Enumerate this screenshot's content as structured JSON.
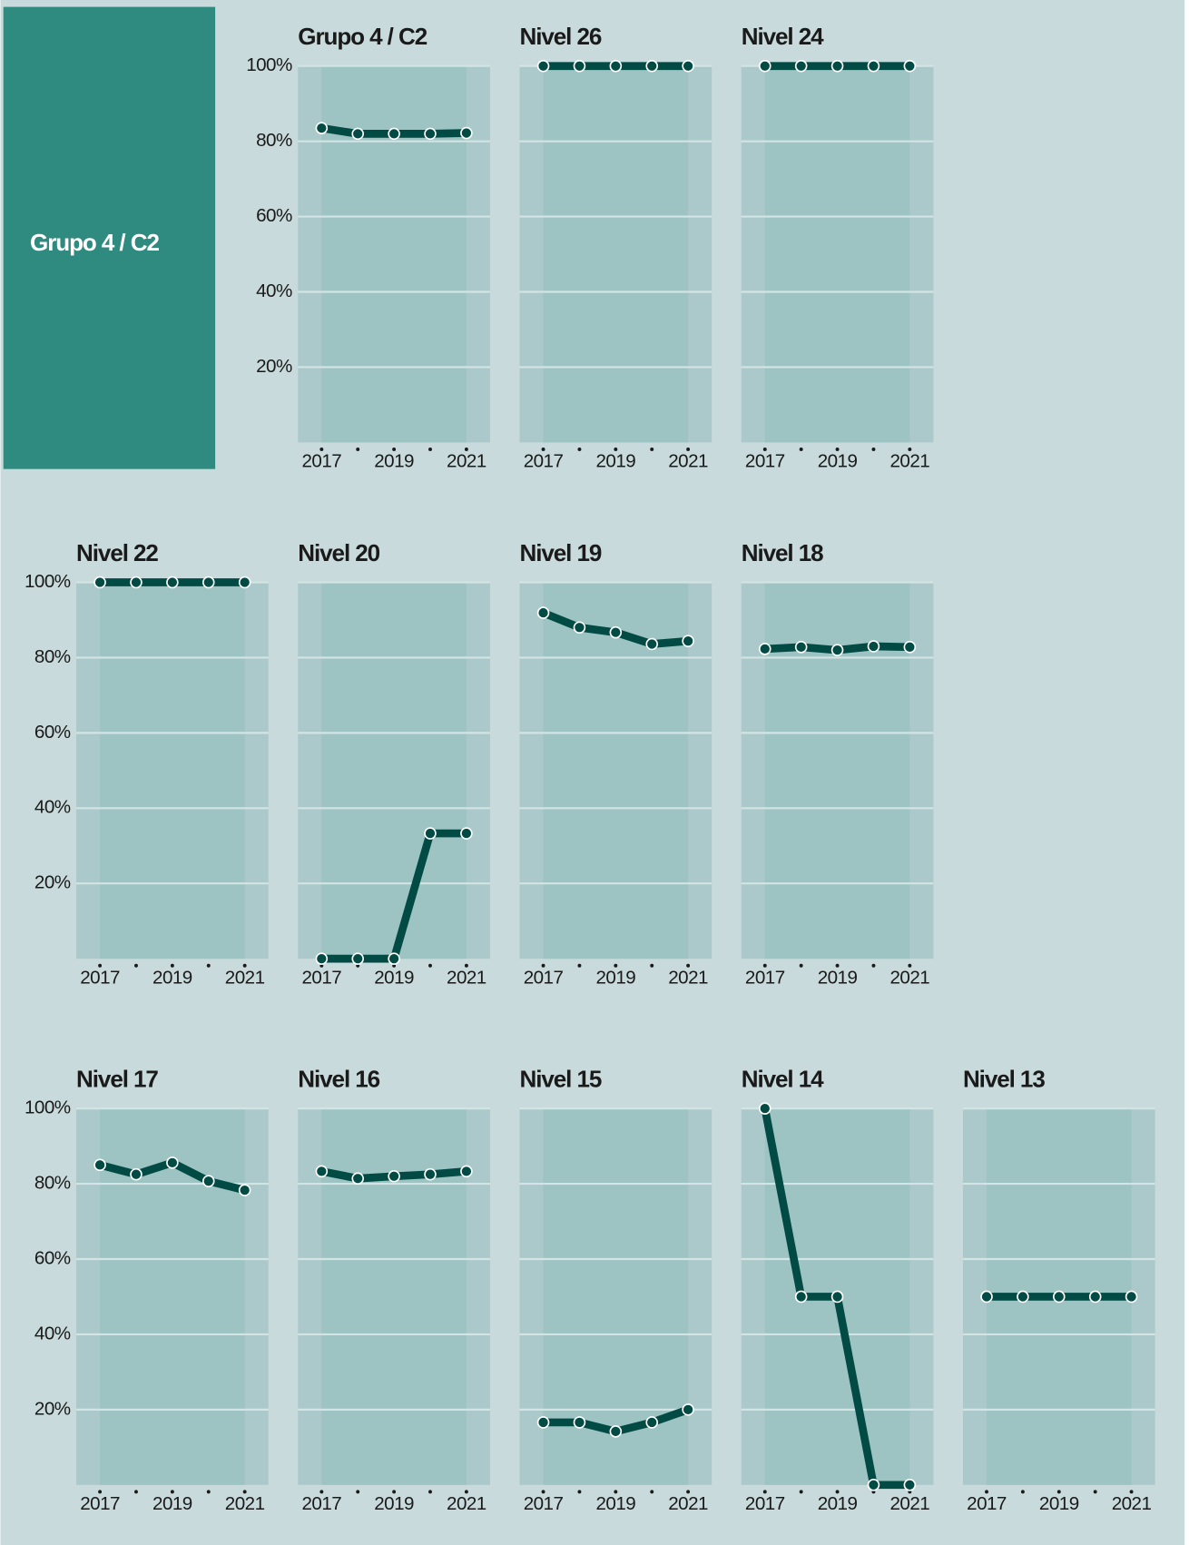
{
  "group_label": "Grupo 4 / C2",
  "shared_axes": {
    "xlim": [
      2017,
      2021
    ],
    "xticks": [
      2017,
      {
        "value": 2018,
        "label": null
      },
      2019,
      {
        "value": 2020,
        "label": null
      },
      2021
    ],
    "ylim": [
      0,
      100
    ],
    "yticks": [
      {
        "value": 20,
        "label": "20%"
      },
      {
        "value": 40,
        "label": "40%"
      },
      {
        "value": 60,
        "label": "60%"
      },
      {
        "value": 80,
        "label": "80%"
      },
      {
        "value": 100,
        "label": "100%"
      }
    ],
    "grid": true
  },
  "chart_data": [
    {
      "type": "line",
      "title": "Grupo 4 / C2",
      "x": [
        2017,
        2018,
        2019,
        2020,
        2021
      ],
      "values": [
        83.5,
        82,
        82,
        82,
        82.2
      ],
      "color": "#024a44"
    },
    {
      "type": "line",
      "title": "Nivel 26",
      "x": [
        2017,
        2018,
        2019,
        2020,
        2021
      ],
      "values": [
        100,
        100,
        100,
        100,
        100
      ],
      "color": "#024a44"
    },
    {
      "type": "line",
      "title": "Nivel 24",
      "x": [
        2017,
        2018,
        2019,
        2020,
        2021
      ],
      "values": [
        100,
        100,
        100,
        100,
        100
      ],
      "color": "#024a44"
    },
    {
      "type": "line",
      "title": "Nivel 22",
      "x": [
        2017,
        2018,
        2019,
        2020,
        2021
      ],
      "values": [
        100,
        100,
        100,
        100,
        100
      ],
      "color": "#024a44"
    },
    {
      "type": "line",
      "title": "Nivel 20",
      "x": [
        2017,
        2018,
        2019,
        2020,
        2021
      ],
      "values": [
        0,
        0,
        0,
        33.3,
        33.3
      ],
      "color": "#024a44"
    },
    {
      "type": "line",
      "title": "Nivel 19",
      "x": [
        2017,
        2018,
        2019,
        2020,
        2021
      ],
      "values": [
        91.9,
        88,
        86.7,
        83.6,
        84.4
      ],
      "color": "#024a44"
    },
    {
      "type": "line",
      "title": "Nivel 18",
      "x": [
        2017,
        2018,
        2019,
        2020,
        2021
      ],
      "values": [
        82.3,
        82.8,
        82,
        83,
        82.8
      ],
      "color": "#024a44"
    },
    {
      "type": "line",
      "title": "Nivel 17",
      "x": [
        2017,
        2018,
        2019,
        2020,
        2021
      ],
      "values": [
        85,
        82.5,
        85.6,
        80.7,
        78.3
      ],
      "color": "#024a44"
    },
    {
      "type": "line",
      "title": "Nivel 16",
      "x": [
        2017,
        2018,
        2019,
        2020,
        2021
      ],
      "values": [
        83.3,
        81.4,
        82,
        82.5,
        83.3
      ],
      "color": "#024a44"
    },
    {
      "type": "line",
      "title": "Nivel 15",
      "x": [
        2017,
        2018,
        2019,
        2020,
        2021
      ],
      "values": [
        16.6,
        16.6,
        14.2,
        16.6,
        20
      ],
      "color": "#024a44"
    },
    {
      "type": "line",
      "title": "Nivel 14",
      "x": [
        2017,
        2018,
        2019,
        2020,
        2021
      ],
      "values": [
        100,
        50,
        50,
        0,
        0
      ],
      "color": "#024a44"
    },
    {
      "type": "line",
      "title": "Nivel 13",
      "x": [
        2017,
        2018,
        2019,
        2020,
        2021
      ],
      "values": [
        50,
        50,
        50,
        50,
        50
      ],
      "color": "#024a44"
    }
  ]
}
